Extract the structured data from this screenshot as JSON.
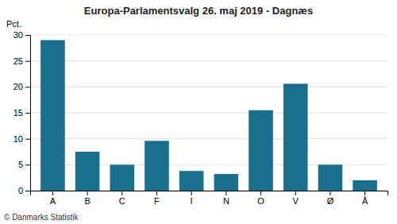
{
  "chart_data": {
    "type": "bar",
    "title": "Europa-Parlamentsvalg 26. maj 2019 - Dagnæs",
    "categories": [
      "A",
      "B",
      "C",
      "F",
      "I",
      "N",
      "O",
      "V",
      "Ø",
      "Å"
    ],
    "values": [
      29.0,
      7.5,
      5.0,
      9.6,
      3.8,
      3.2,
      15.5,
      20.6,
      5.0,
      2.0
    ],
    "color": "#1a6e8e",
    "ylabel": "Pct.",
    "ylim": [
      0,
      30
    ],
    "yticks": [
      0,
      5,
      10,
      15,
      20,
      25,
      30
    ],
    "grid": true,
    "annotations": [
      "© Danmarks Statistik"
    ]
  }
}
